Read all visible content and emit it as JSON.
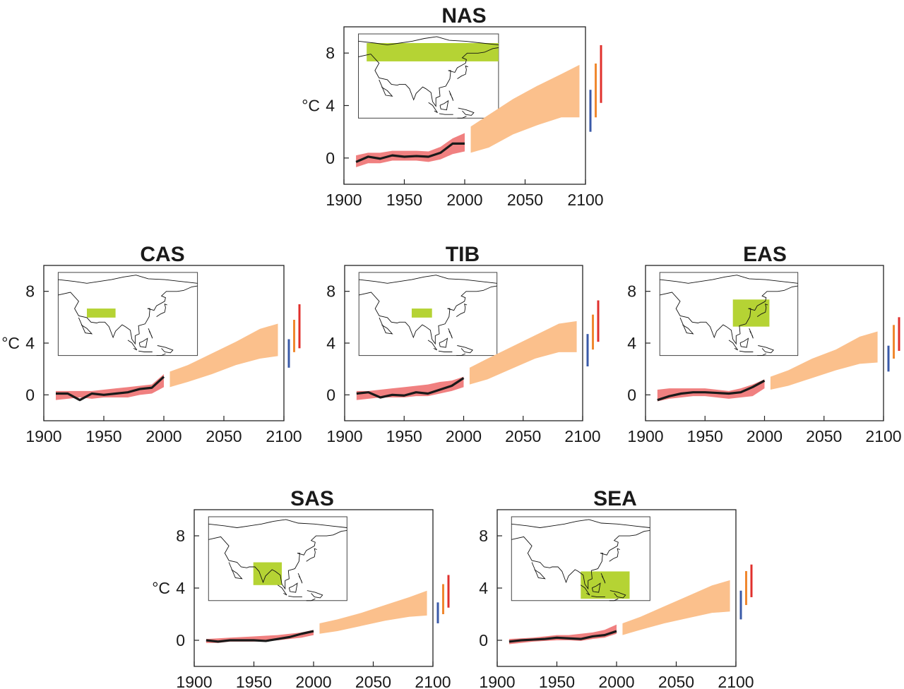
{
  "colors": {
    "observed_band": "#f08080",
    "projected_band": "#fbc08c",
    "observed_line": "#1a1a1a",
    "region_box": "#b5d334",
    "bar_low": "#3a5aa8",
    "bar_mid": "#f0882f",
    "bar_high": "#e0302c"
  },
  "chart_data": [
    {
      "type": "area",
      "title": "NAS",
      "ylabel": "°C",
      "xlim": [
        1900,
        2100
      ],
      "ylim": [
        -2,
        10
      ],
      "xticks": [
        "1900",
        "1950",
        "2000",
        "2050",
        "2100"
      ],
      "yticks": [
        "0",
        "4",
        "8"
      ],
      "region_map": {
        "lon": [
          20,
          180
        ],
        "lat": [
          50,
          70
        ]
      },
      "observed": {
        "x": [
          1910,
          1920,
          1930,
          1940,
          1950,
          1960,
          1970,
          1980,
          1990,
          2000
        ],
        "line": [
          -0.3,
          0.1,
          -0.05,
          0.2,
          0.1,
          0.15,
          0.1,
          0.4,
          1.1,
          1.1
        ],
        "low": [
          -0.7,
          -0.4,
          -0.4,
          -0.2,
          -0.2,
          -0.2,
          -0.3,
          -0.1,
          0.3,
          0.5
        ],
        "high": [
          0.2,
          0.4,
          0.4,
          0.55,
          0.55,
          0.55,
          0.5,
          0.85,
          1.5,
          1.9
        ]
      },
      "projected": {
        "x": [
          2005,
          2020,
          2040,
          2060,
          2080,
          2095
        ],
        "low": [
          0.4,
          0.8,
          1.8,
          2.5,
          3.1,
          3.1
        ],
        "high": [
          2.4,
          3.3,
          4.5,
          5.5,
          6.4,
          7.1
        ]
      },
      "scenario_bars": [
        {
          "low": 2.0,
          "high": 5.2
        },
        {
          "low": 3.1,
          "high": 7.2
        },
        {
          "low": 4.2,
          "high": 8.6
        }
      ]
    },
    {
      "type": "area",
      "title": "CAS",
      "ylabel": "°C",
      "xlim": [
        1900,
        2100
      ],
      "ylim": [
        -2,
        10
      ],
      "xticks": [
        "1900",
        "1950",
        "2000",
        "2050",
        "2100"
      ],
      "yticks": [
        "0",
        "4",
        "8"
      ],
      "region_map": {
        "lon": [
          45,
          80
        ],
        "lat": [
          30,
          40
        ]
      },
      "observed": {
        "x": [
          1910,
          1920,
          1930,
          1940,
          1950,
          1960,
          1970,
          1980,
          1990,
          2000
        ],
        "line": [
          0.1,
          0.1,
          -0.4,
          0.1,
          0.0,
          0.1,
          0.2,
          0.45,
          0.55,
          1.4
        ],
        "low": [
          -0.4,
          -0.3,
          -0.2,
          -0.3,
          -0.2,
          -0.2,
          -0.2,
          0.0,
          0.1,
          0.6
        ],
        "high": [
          0.3,
          0.3,
          0.3,
          0.3,
          0.4,
          0.5,
          0.6,
          0.7,
          0.8,
          1.6
        ]
      },
      "projected": {
        "x": [
          2005,
          2020,
          2040,
          2060,
          2080,
          2095
        ],
        "low": [
          0.6,
          1.0,
          1.6,
          2.3,
          2.8,
          3.0
        ],
        "high": [
          1.8,
          2.3,
          3.2,
          4.1,
          5.1,
          5.5
        ]
      },
      "scenario_bars": [
        {
          "low": 2.1,
          "high": 4.3
        },
        {
          "low": 3.3,
          "high": 5.8
        },
        {
          "low": 3.6,
          "high": 7.0
        }
      ]
    },
    {
      "type": "area",
      "title": "TIB",
      "ylabel": "",
      "xlim": [
        1900,
        2100
      ],
      "ylim": [
        -2,
        10
      ],
      "xticks": [
        "1900",
        "1950",
        "2000",
        "2050",
        "2100"
      ],
      "yticks": [
        "0",
        "4",
        "8"
      ],
      "region_map": {
        "lon": [
          75,
          100
        ],
        "lat": [
          30,
          40
        ]
      },
      "observed": {
        "x": [
          1910,
          1920,
          1930,
          1940,
          1950,
          1960,
          1970,
          1980,
          1990,
          2000
        ],
        "line": [
          0.1,
          0.2,
          -0.2,
          0.0,
          -0.05,
          0.2,
          0.1,
          0.4,
          0.7,
          1.3
        ],
        "low": [
          -0.4,
          -0.3,
          -0.2,
          -0.2,
          -0.2,
          -0.1,
          -0.1,
          0.1,
          0.3,
          0.6
        ],
        "high": [
          0.3,
          0.3,
          0.4,
          0.5,
          0.6,
          0.7,
          0.8,
          1.0,
          1.1,
          1.4
        ]
      },
      "projected": {
        "x": [
          2005,
          2020,
          2040,
          2060,
          2080,
          2095
        ],
        "low": [
          0.8,
          1.2,
          2.0,
          2.8,
          3.3,
          3.3
        ],
        "high": [
          2.1,
          2.8,
          3.7,
          4.6,
          5.5,
          5.7
        ]
      },
      "scenario_bars": [
        {
          "low": 2.2,
          "high": 4.7
        },
        {
          "low": 3.5,
          "high": 6.2
        },
        {
          "low": 4.1,
          "high": 7.3
        }
      ]
    },
    {
      "type": "area",
      "title": "EAS",
      "ylabel": "",
      "xlim": [
        1900,
        2100
      ],
      "ylim": [
        -2,
        10
      ],
      "xticks": [
        "1900",
        "1950",
        "2000",
        "2050",
        "2100"
      ],
      "yticks": [
        "0",
        "4",
        "8"
      ],
      "region_map": {
        "lon": [
          100,
          145
        ],
        "lat": [
          20,
          50
        ]
      },
      "observed": {
        "x": [
          1910,
          1920,
          1930,
          1940,
          1950,
          1960,
          1970,
          1980,
          1990,
          2000
        ],
        "line": [
          -0.4,
          -0.1,
          0.1,
          0.2,
          0.2,
          0.15,
          0.1,
          0.2,
          0.6,
          1.1
        ],
        "low": [
          -0.5,
          -0.3,
          -0.2,
          -0.1,
          -0.1,
          -0.2,
          -0.3,
          -0.2,
          -0.1,
          0.5
        ],
        "high": [
          0.4,
          0.5,
          0.5,
          0.5,
          0.5,
          0.4,
          0.3,
          0.5,
          0.8,
          1.2
        ]
      },
      "projected": {
        "x": [
          2005,
          2020,
          2040,
          2060,
          2080,
          2095
        ],
        "low": [
          0.4,
          0.7,
          1.3,
          1.9,
          2.4,
          2.5
        ],
        "high": [
          1.4,
          1.9,
          2.8,
          3.5,
          4.5,
          4.9
        ]
      },
      "scenario_bars": [
        {
          "low": 1.8,
          "high": 3.8
        },
        {
          "low": 2.8,
          "high": 5.4
        },
        {
          "low": 3.4,
          "high": 6.0
        }
      ]
    },
    {
      "type": "area",
      "title": "SAS",
      "ylabel": "°C",
      "xlim": [
        1900,
        2100
      ],
      "ylim": [
        -2,
        10
      ],
      "xticks": [
        "1900",
        "1950",
        "2000",
        "2050",
        "2100"
      ],
      "yticks": [
        "0",
        "4",
        "8"
      ],
      "region_map": {
        "lon": [
          65,
          100
        ],
        "lat": [
          5,
          30
        ]
      },
      "observed": {
        "x": [
          1910,
          1920,
          1930,
          1940,
          1950,
          1960,
          1970,
          1980,
          1990,
          2000
        ],
        "line": [
          0.0,
          -0.1,
          0.0,
          0.0,
          0.0,
          -0.05,
          0.1,
          0.25,
          0.5,
          0.7
        ],
        "low": [
          -0.2,
          -0.2,
          -0.1,
          -0.1,
          -0.1,
          -0.05,
          0.0,
          0.1,
          0.2,
          0.4
        ],
        "high": [
          0.1,
          0.15,
          0.2,
          0.25,
          0.3,
          0.35,
          0.4,
          0.5,
          0.6,
          0.8
        ]
      },
      "projected": {
        "x": [
          2005,
          2020,
          2040,
          2060,
          2080,
          2095
        ],
        "low": [
          0.5,
          0.7,
          1.1,
          1.5,
          1.8,
          1.9
        ],
        "high": [
          1.3,
          1.6,
          2.1,
          2.7,
          3.3,
          3.8
        ]
      },
      "scenario_bars": [
        {
          "low": 1.3,
          "high": 2.9
        },
        {
          "low": 2.0,
          "high": 4.3
        },
        {
          "low": 2.5,
          "high": 5.0
        }
      ]
    },
    {
      "type": "area",
      "title": "SEA",
      "ylabel": "",
      "xlim": [
        1900,
        2100
      ],
      "ylim": [
        -2,
        10
      ],
      "xticks": [
        "1900",
        "1950",
        "2000",
        "2050",
        "2100"
      ],
      "yticks": [
        "0",
        "4",
        "8"
      ],
      "region_map": {
        "lon": [
          95,
          155
        ],
        "lat": [
          -10,
          20
        ]
      },
      "observed": {
        "x": [
          1910,
          1920,
          1930,
          1940,
          1950,
          1960,
          1970,
          1980,
          1990,
          2000
        ],
        "line": [
          -0.1,
          0.0,
          0.05,
          0.1,
          0.2,
          0.15,
          0.1,
          0.3,
          0.4,
          0.7
        ],
        "low": [
          -0.3,
          -0.2,
          -0.1,
          -0.05,
          0.0,
          0.0,
          -0.05,
          0.1,
          0.2,
          0.5
        ],
        "high": [
          0.1,
          0.15,
          0.2,
          0.3,
          0.4,
          0.4,
          0.5,
          0.6,
          0.8,
          1.2
        ]
      },
      "projected": {
        "x": [
          2005,
          2020,
          2040,
          2060,
          2080,
          2095
        ],
        "low": [
          0.4,
          0.8,
          1.3,
          1.7,
          2.1,
          2.2
        ],
        "high": [
          1.3,
          1.8,
          2.6,
          3.4,
          4.2,
          4.6
        ]
      },
      "scenario_bars": [
        {
          "low": 1.6,
          "high": 3.8
        },
        {
          "low": 2.7,
          "high": 5.3
        },
        {
          "low": 3.3,
          "high": 5.8
        }
      ]
    }
  ]
}
